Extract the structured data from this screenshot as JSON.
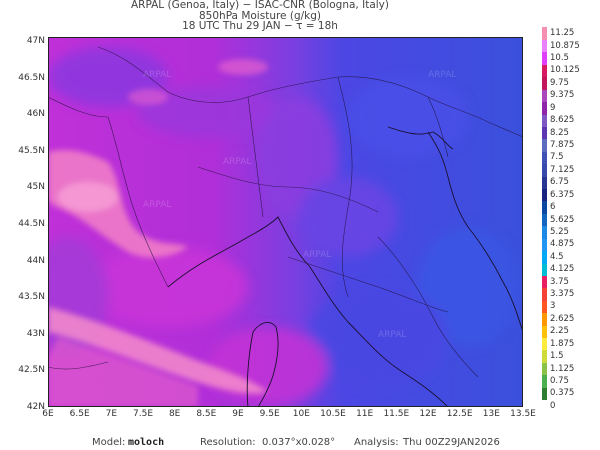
{
  "title": {
    "line1": "ARPAL (Genoa, Italy)  −  ISAC-CNR (Bologna, Italy)",
    "line2": "850hPa Moisture (g/kg)",
    "line3": "18 UTC Thu 29 JAN  −  τ = 18h"
  },
  "axes": {
    "lat_labels": [
      "47N",
      "46.5N",
      "46N",
      "45.5N",
      "45N",
      "44.5N",
      "44N",
      "43.5N",
      "43N",
      "42.5N",
      "42N"
    ],
    "lon_labels": [
      "6E",
      "6.5E",
      "7E",
      "7.5E",
      "8E",
      "8.5E",
      "9E",
      "9.5E",
      "10E",
      "10.5E",
      "11E",
      "11.5E",
      "12E",
      "12.5E",
      "13E",
      "13.5E"
    ]
  },
  "colorbar": {
    "levels": [
      "0",
      "0.375",
      "0.75",
      "1.125",
      "1.5",
      "1.875",
      "2.25",
      "2.625",
      "3",
      "3.375",
      "3.75",
      "4.125",
      "4.5",
      "4.875",
      "5.25",
      "5.625",
      "6",
      "6.375",
      "6.75",
      "7.125",
      "7.5",
      "7.875",
      "8.25",
      "8.625",
      "9",
      "9.375",
      "9.75",
      "10.125",
      "10.5",
      "10.875",
      "11.25"
    ],
    "colors": [
      "#ffffff",
      "#2e7d32",
      "#4caf50",
      "#8bc34a",
      "#cddc39",
      "#ffeb3b",
      "#ffc107",
      "#ff9800",
      "#ff5722",
      "#f44336",
      "#e91e63",
      "#00bcd4",
      "#03a9f4",
      "#2196f3",
      "#1e88e5",
      "#1565c0",
      "#0d47a1",
      "#1a237e",
      "#283593",
      "#3949ab",
      "#3f51b5",
      "#5c6bc0",
      "#5e35b1",
      "#7e57c2",
      "#8e24aa",
      "#ab47bc",
      "#c2185b",
      "#d81b60",
      "#e040fb",
      "#ea80fc",
      "#f48fb1"
    ]
  },
  "map": {
    "west_color": "#c432d8",
    "east_color": "#3d4fe0",
    "plume_color": "#f27fc6",
    "watermark": "ARPAL"
  },
  "footer": {
    "model_label": "Model:",
    "model_value": "moloch",
    "resolution_label": "Resolution:",
    "resolution_value": "0.037°x0.028°",
    "analysis_label": "Analysis:",
    "analysis_value": "Thu 00Z29JAN2026"
  }
}
